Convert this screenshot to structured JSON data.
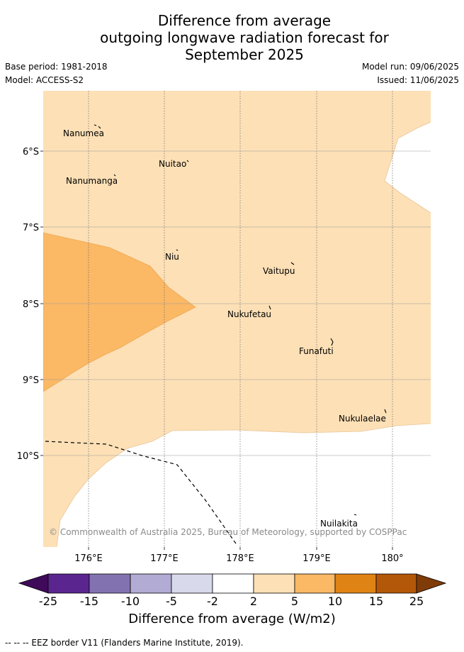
{
  "title": {
    "line1": "Difference from average",
    "line2": "outgoing longwave radiation forecast for",
    "line3": "September 2025"
  },
  "meta": {
    "base_period": "Base period: 1981-2018",
    "model": "Model: ACCESS-S2",
    "model_run": "Model run: 09/06/2025",
    "issued": "Issued: 11/06/2025"
  },
  "map": {
    "lat_labels": [
      "6°S",
      "7°S",
      "8°S",
      "9°S",
      "10°S"
    ],
    "lon_labels": [
      "176°E",
      "177°E",
      "178°E",
      "179°E",
      "180°"
    ],
    "places": [
      "Nanumea",
      "Nuitao",
      "Nanumanga",
      "Niu",
      "Vaitupu",
      "Nukufetau",
      "Funafuti",
      "Nukulaelae",
      "Nuilakita"
    ],
    "copyright": "© Commonwealth of Australia 2025, Bureau of Meteorology, supported by COSPPac",
    "colors": {
      "anom_2_5": "#fde0b6",
      "anom_5_10": "#fbb865",
      "background": "#ffffff"
    }
  },
  "colorbar": {
    "ticks": [
      "-25",
      "-15",
      "-10",
      "-5",
      "-2",
      "2",
      "5",
      "10",
      "15",
      "25"
    ],
    "colors": [
      "#3f0a5a",
      "#5b2590",
      "#8273b0",
      "#b2abd3",
      "#d8d9eb",
      "#ffffff",
      "#fde0b6",
      "#fbb865",
      "#e08315",
      "#b35808",
      "#7f3b08"
    ],
    "label": "Difference from average (W/m2)"
  },
  "legend": {
    "eez": "-- -- -- EEZ border V11 (Flanders Marine Institute, 2019)."
  }
}
